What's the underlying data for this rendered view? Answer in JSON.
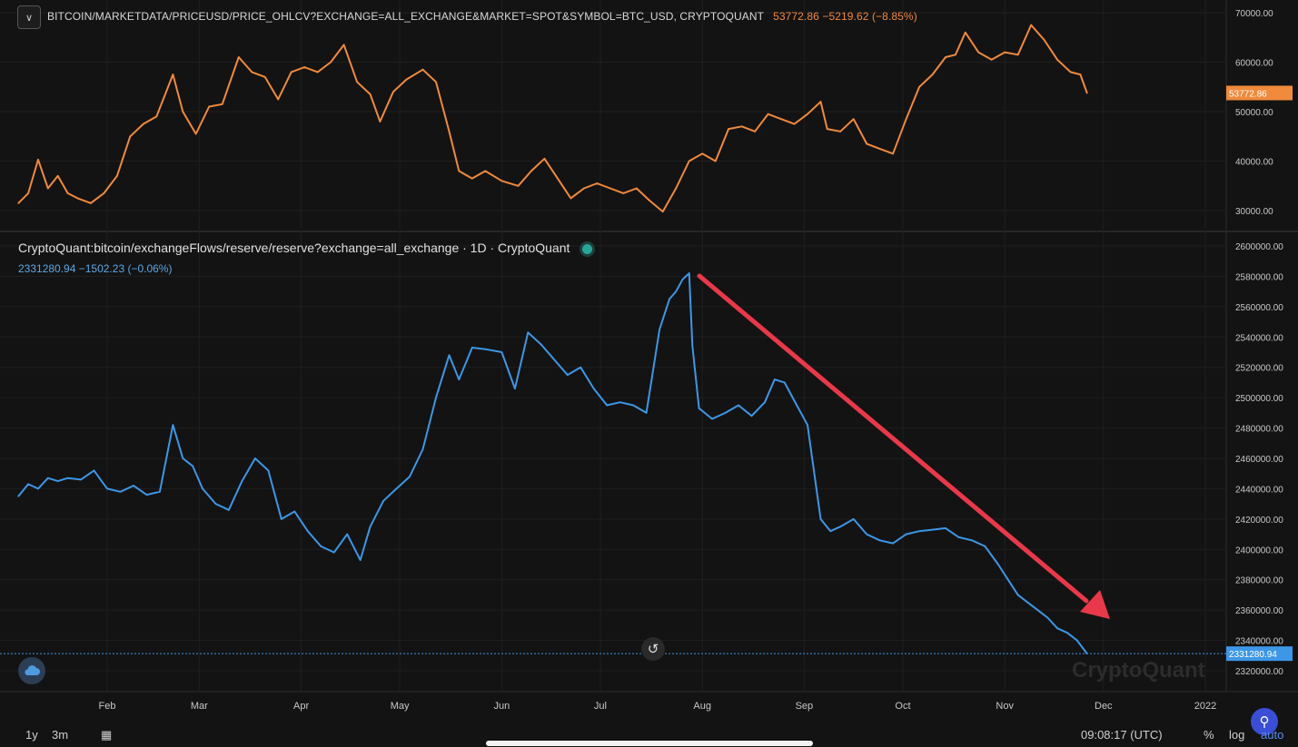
{
  "top_panel": {
    "title": "BITCOIN/MARKETDATA/PRICEUSD/PRICE_OHLCV?EXCHANGE=ALL_EXCHANGE&MARKET=SPOT&SYMBOL=BTC_USD, CRYPTOQUANT",
    "value_text": "53772.86  −5219.62 (−8.85%)",
    "last_label": "53772.86",
    "y_ticks": [
      "70000.00",
      "60000.00",
      "50000.00",
      "40000.00",
      "30000.00"
    ]
  },
  "bottom_panel": {
    "title": "CryptoQuant:bitcoin/exchangeFlows/reserve/reserve?exchange=all_exchange · 1D · CryptoQuant",
    "value_text": "2331280.94  −1502.23 (−0.06%)",
    "last_label": "2331280.94",
    "watermark": "CryptoQuant",
    "y_ticks": [
      "2600000.00",
      "2580000.00",
      "2560000.00",
      "2540000.00",
      "2520000.00",
      "2500000.00",
      "2480000.00",
      "2460000.00",
      "2440000.00",
      "2420000.00",
      "2400000.00",
      "2380000.00",
      "2360000.00",
      "2340000.00",
      "2320000.00"
    ]
  },
  "x_ticks": [
    "Feb",
    "Mar",
    "Apr",
    "May",
    "Jun",
    "Jul",
    "Aug",
    "Sep",
    "Oct",
    "Nov",
    "Dec",
    "2022"
  ],
  "toolbar": {
    "range_1y": "1y",
    "range_3m": "3m",
    "clock": "09:08:17 (UTC)",
    "percent": "%",
    "log": "log",
    "auto": "auto"
  },
  "colors": {
    "price": "#f08a3c",
    "reserve": "#3d97e6",
    "arrow": "#e8394a",
    "background": "#131313"
  },
  "chart_data": [
    {
      "type": "line",
      "title": "BITCOIN/MARKETDATA/PRICEUSD/PRICE_OHLCV?EXCHANGE=ALL_EXCHANGE&MARKET=SPOT&SYMBOL=BTC_USD, CRYPTOQUANT",
      "series": [
        {
          "name": "BTC_USD price",
          "x": [
            "2021-01-05",
            "2021-01-08",
            "2021-01-11",
            "2021-01-14",
            "2021-01-17",
            "2021-01-20",
            "2021-01-23",
            "2021-01-27",
            "2021-01-31",
            "2021-02-04",
            "2021-02-08",
            "2021-02-12",
            "2021-02-16",
            "2021-02-21",
            "2021-02-24",
            "2021-02-28",
            "2021-03-04",
            "2021-03-08",
            "2021-03-13",
            "2021-03-17",
            "2021-03-21",
            "2021-03-25",
            "2021-03-29",
            "2021-04-02",
            "2021-04-06",
            "2021-04-10",
            "2021-04-14",
            "2021-04-18",
            "2021-04-22",
            "2021-04-25",
            "2021-04-29",
            "2021-05-03",
            "2021-05-08",
            "2021-05-12",
            "2021-05-16",
            "2021-05-19",
            "2021-05-23",
            "2021-05-27",
            "2021-06-01",
            "2021-06-06",
            "2021-06-10",
            "2021-06-14",
            "2021-06-18",
            "2021-06-22",
            "2021-06-26",
            "2021-06-30",
            "2021-07-04",
            "2021-07-08",
            "2021-07-12",
            "2021-07-16",
            "2021-07-20",
            "2021-07-24",
            "2021-07-28",
            "2021-08-01",
            "2021-08-05",
            "2021-08-09",
            "2021-08-13",
            "2021-08-17",
            "2021-08-21",
            "2021-08-25",
            "2021-08-29",
            "2021-09-02",
            "2021-09-06",
            "2021-09-08",
            "2021-09-12",
            "2021-09-16",
            "2021-09-20",
            "2021-09-24",
            "2021-09-28",
            "2021-10-02",
            "2021-10-06",
            "2021-10-10",
            "2021-10-14",
            "2021-10-17",
            "2021-10-20",
            "2021-10-24",
            "2021-10-28",
            "2021-11-01",
            "2021-11-05",
            "2021-11-09",
            "2021-11-13",
            "2021-11-17",
            "2021-11-21",
            "2021-11-24",
            "2021-11-26"
          ],
          "values": [
            31500,
            33500,
            40300,
            34500,
            37000,
            33500,
            32500,
            31500,
            33500,
            37000,
            45000,
            47500,
            49000,
            57500,
            50000,
            45500,
            51000,
            51500,
            61000,
            58000,
            57000,
            52500,
            58000,
            59000,
            58000,
            60000,
            63500,
            56000,
            53500,
            48000,
            54000,
            56500,
            58500,
            56000,
            46000,
            38000,
            36500,
            38000,
            36000,
            35000,
            38000,
            40500,
            36500,
            32500,
            34500,
            35500,
            34500,
            33500,
            34500,
            32000,
            29800,
            34500,
            40000,
            41500,
            40000,
            46500,
            47000,
            46000,
            49500,
            48500,
            47500,
            49500,
            52000,
            46500,
            46000,
            48500,
            43500,
            42500,
            41500,
            48500,
            55000,
            57500,
            61000,
            61500,
            66000,
            62000,
            60500,
            62000,
            61500,
            67500,
            64500,
            60500,
            58000,
            57500,
            53772
          ]
        }
      ],
      "ylim": [
        25000,
        72000
      ]
    },
    {
      "type": "line",
      "title": "CryptoQuant:bitcoin/exchangeFlows/reserve/reserve?exchange=all_exchange · 1D · CryptoQuant",
      "series": [
        {
          "name": "Exchange reserve (all_exchange)",
          "x": [
            "2021-01-05",
            "2021-01-08",
            "2021-01-11",
            "2021-01-14",
            "2021-01-17",
            "2021-01-20",
            "2021-01-24",
            "2021-01-28",
            "2021-02-01",
            "2021-02-05",
            "2021-02-09",
            "2021-02-13",
            "2021-02-17",
            "2021-02-21",
            "2021-02-24",
            "2021-02-27",
            "2021-03-02",
            "2021-03-06",
            "2021-03-10",
            "2021-03-14",
            "2021-03-18",
            "2021-03-22",
            "2021-03-26",
            "2021-03-30",
            "2021-04-03",
            "2021-04-07",
            "2021-04-11",
            "2021-04-15",
            "2021-04-19",
            "2021-04-22",
            "2021-04-26",
            "2021-04-30",
            "2021-05-04",
            "2021-05-08",
            "2021-05-12",
            "2021-05-16",
            "2021-05-19",
            "2021-05-23",
            "2021-05-27",
            "2021-06-01",
            "2021-06-05",
            "2021-06-09",
            "2021-06-13",
            "2021-06-17",
            "2021-06-21",
            "2021-06-25",
            "2021-06-29",
            "2021-07-03",
            "2021-07-07",
            "2021-07-11",
            "2021-07-15",
            "2021-07-19",
            "2021-07-22",
            "2021-07-24",
            "2021-07-26",
            "2021-07-28",
            "2021-07-29",
            "2021-07-31",
            "2021-08-04",
            "2021-08-08",
            "2021-08-12",
            "2021-08-16",
            "2021-08-20",
            "2021-08-23",
            "2021-08-26",
            "2021-08-29",
            "2021-09-02",
            "2021-09-06",
            "2021-09-09",
            "2021-09-12",
            "2021-09-16",
            "2021-09-20",
            "2021-09-24",
            "2021-09-28",
            "2021-10-02",
            "2021-10-06",
            "2021-10-10",
            "2021-10-14",
            "2021-10-18",
            "2021-10-22",
            "2021-10-26",
            "2021-10-30",
            "2021-11-02",
            "2021-11-05",
            "2021-11-08",
            "2021-11-11",
            "2021-11-14",
            "2021-11-17",
            "2021-11-20",
            "2021-11-23",
            "2021-11-26"
          ],
          "values": [
            2435000,
            2443000,
            2440000,
            2447000,
            2445000,
            2447000,
            2446000,
            2452000,
            2440000,
            2438000,
            2442000,
            2436000,
            2438000,
            2482000,
            2460000,
            2455000,
            2440000,
            2430000,
            2426000,
            2445000,
            2460000,
            2452000,
            2420000,
            2425000,
            2412000,
            2402000,
            2398000,
            2410000,
            2393000,
            2415000,
            2432000,
            2440000,
            2448000,
            2466000,
            2500000,
            2528000,
            2512000,
            2533000,
            2532000,
            2530000,
            2506000,
            2543000,
            2535000,
            2525000,
            2515000,
            2520000,
            2506000,
            2495000,
            2497000,
            2495000,
            2490000,
            2545000,
            2565000,
            2570000,
            2578000,
            2582000,
            2534000,
            2493000,
            2486000,
            2490000,
            2495000,
            2488000,
            2497000,
            2512000,
            2510000,
            2498000,
            2482000,
            2420000,
            2412000,
            2415000,
            2420000,
            2410000,
            2406000,
            2404000,
            2410000,
            2412000,
            2413000,
            2414000,
            2408000,
            2406000,
            2402000,
            2390000,
            2380000,
            2370000,
            2365000,
            2360000,
            2355000,
            2348000,
            2345000,
            2340000,
            2331281
          ]
        }
      ],
      "ylim": [
        2310000,
        2610000
      ],
      "annotation": "downward trend arrow"
    }
  ]
}
